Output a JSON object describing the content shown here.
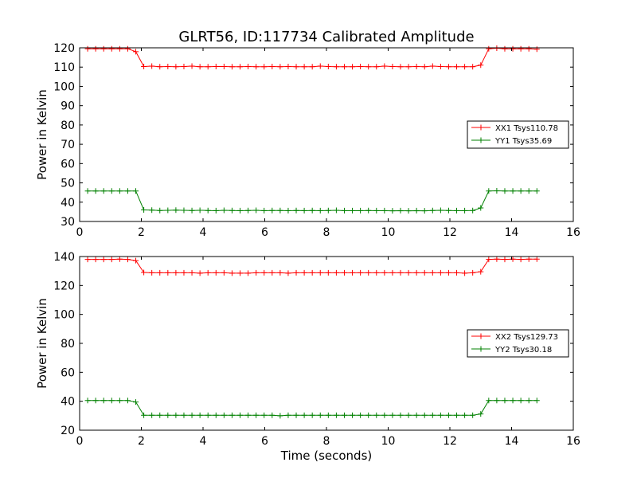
{
  "chart_data": [
    {
      "type": "line",
      "title": "GLRT56, ID:117734 Calibrated Amplitude",
      "xlabel": "",
      "ylabel": "Power in Kelvin",
      "xlim": [
        0,
        16
      ],
      "ylim": [
        30,
        120
      ],
      "xticks": [
        0,
        2,
        4,
        6,
        8,
        10,
        12,
        14,
        16
      ],
      "yticks": [
        30,
        40,
        50,
        60,
        70,
        80,
        90,
        100,
        110,
        120
      ],
      "grid": false,
      "legend": "center-right",
      "x": [
        0.26,
        0.52,
        0.78,
        1.04,
        1.3,
        1.56,
        1.82,
        2.08,
        2.34,
        2.6,
        2.86,
        3.12,
        3.38,
        3.64,
        3.9,
        4.16,
        4.42,
        4.68,
        4.94,
        5.2,
        5.46,
        5.72,
        5.98,
        6.24,
        6.5,
        6.76,
        7.02,
        7.28,
        7.54,
        7.8,
        8.06,
        8.32,
        8.58,
        8.84,
        9.1,
        9.36,
        9.62,
        9.88,
        10.14,
        10.4,
        10.66,
        10.92,
        11.18,
        11.44,
        11.7,
        11.96,
        12.22,
        12.48,
        12.74,
        13.0,
        13.26,
        13.52,
        13.78,
        14.04,
        14.3,
        14.56,
        14.82
      ],
      "series": [
        {
          "name": "XX1 Tsys110.78",
          "color": "#ff0000",
          "values": [
            119.5,
            119.5,
            119.5,
            119.5,
            119.5,
            119.5,
            118.0,
            110.3,
            110.5,
            110.2,
            110.3,
            110.2,
            110.3,
            110.5,
            110.2,
            110.2,
            110.3,
            110.3,
            110.2,
            110.2,
            110.3,
            110.2,
            110.2,
            110.3,
            110.2,
            110.3,
            110.2,
            110.2,
            110.2,
            110.5,
            110.3,
            110.2,
            110.2,
            110.2,
            110.3,
            110.2,
            110.2,
            110.5,
            110.3,
            110.2,
            110.2,
            110.3,
            110.2,
            110.5,
            110.3,
            110.2,
            110.2,
            110.2,
            110.2,
            111.0,
            119.5,
            119.8,
            119.5,
            119.5,
            119.5,
            119.5,
            119.3
          ]
        },
        {
          "name": "YY1 Tsys35.69",
          "color": "#008000",
          "values": [
            45.8,
            45.8,
            45.8,
            45.8,
            45.8,
            45.8,
            45.8,
            36.0,
            35.9,
            35.7,
            35.8,
            35.9,
            35.8,
            35.7,
            35.8,
            35.7,
            35.6,
            35.8,
            35.7,
            35.6,
            35.7,
            35.8,
            35.6,
            35.7,
            35.7,
            35.6,
            35.7,
            35.6,
            35.7,
            35.6,
            35.7,
            35.8,
            35.6,
            35.6,
            35.6,
            35.7,
            35.6,
            35.6,
            35.5,
            35.6,
            35.5,
            35.6,
            35.5,
            35.7,
            35.8,
            35.7,
            35.6,
            35.6,
            35.7,
            37.0,
            45.8,
            45.9,
            45.8,
            45.8,
            45.8,
            45.8,
            45.8
          ]
        }
      ]
    },
    {
      "type": "line",
      "title": "",
      "xlabel": "Time (seconds)",
      "ylabel": "Power in Kelvin",
      "xlim": [
        0,
        16
      ],
      "ylim": [
        20,
        140
      ],
      "xticks": [
        0,
        2,
        4,
        6,
        8,
        10,
        12,
        14,
        16
      ],
      "yticks": [
        20,
        40,
        60,
        80,
        100,
        120,
        140
      ],
      "grid": false,
      "legend": "center-right",
      "x": [
        0.26,
        0.52,
        0.78,
        1.04,
        1.3,
        1.56,
        1.82,
        2.08,
        2.34,
        2.6,
        2.86,
        3.12,
        3.38,
        3.64,
        3.9,
        4.16,
        4.42,
        4.68,
        4.94,
        5.2,
        5.46,
        5.72,
        5.98,
        6.24,
        6.5,
        6.76,
        7.02,
        7.28,
        7.54,
        7.8,
        8.06,
        8.32,
        8.58,
        8.84,
        9.1,
        9.36,
        9.62,
        9.88,
        10.14,
        10.4,
        10.66,
        10.92,
        11.18,
        11.44,
        11.7,
        11.96,
        12.22,
        12.48,
        12.74,
        13.0,
        13.26,
        13.52,
        13.78,
        14.04,
        14.3,
        14.56,
        14.82
      ],
      "series": [
        {
          "name": "XX2 Tsys129.73",
          "color": "#ff0000",
          "values": [
            138.0,
            138.0,
            138.0,
            138.0,
            138.2,
            138.0,
            137.2,
            129.0,
            128.8,
            128.8,
            128.8,
            128.8,
            128.8,
            128.8,
            128.5,
            128.8,
            128.8,
            128.8,
            128.5,
            128.5,
            128.5,
            128.8,
            128.8,
            128.8,
            128.8,
            128.5,
            128.8,
            128.8,
            128.8,
            128.8,
            128.8,
            128.8,
            128.8,
            128.8,
            128.8,
            128.8,
            128.8,
            128.8,
            128.8,
            128.8,
            128.8,
            128.8,
            128.8,
            128.8,
            128.8,
            128.8,
            128.8,
            128.5,
            128.8,
            129.5,
            138.0,
            138.2,
            138.0,
            138.2,
            138.0,
            138.2,
            138.2
          ]
        },
        {
          "name": "YY2 Tsys30.18",
          "color": "#008000",
          "values": [
            40.5,
            40.5,
            40.5,
            40.5,
            40.5,
            40.5,
            39.5,
            30.3,
            30.3,
            30.3,
            30.3,
            30.3,
            30.3,
            30.3,
            30.3,
            30.3,
            30.3,
            30.3,
            30.3,
            30.3,
            30.3,
            30.3,
            30.3,
            30.3,
            30.0,
            30.3,
            30.3,
            30.3,
            30.3,
            30.3,
            30.3,
            30.3,
            30.3,
            30.3,
            30.3,
            30.3,
            30.3,
            30.3,
            30.3,
            30.3,
            30.3,
            30.3,
            30.3,
            30.3,
            30.3,
            30.3,
            30.3,
            30.3,
            30.3,
            31.2,
            40.5,
            40.5,
            40.5,
            40.5,
            40.5,
            40.5,
            40.5
          ]
        }
      ]
    }
  ]
}
